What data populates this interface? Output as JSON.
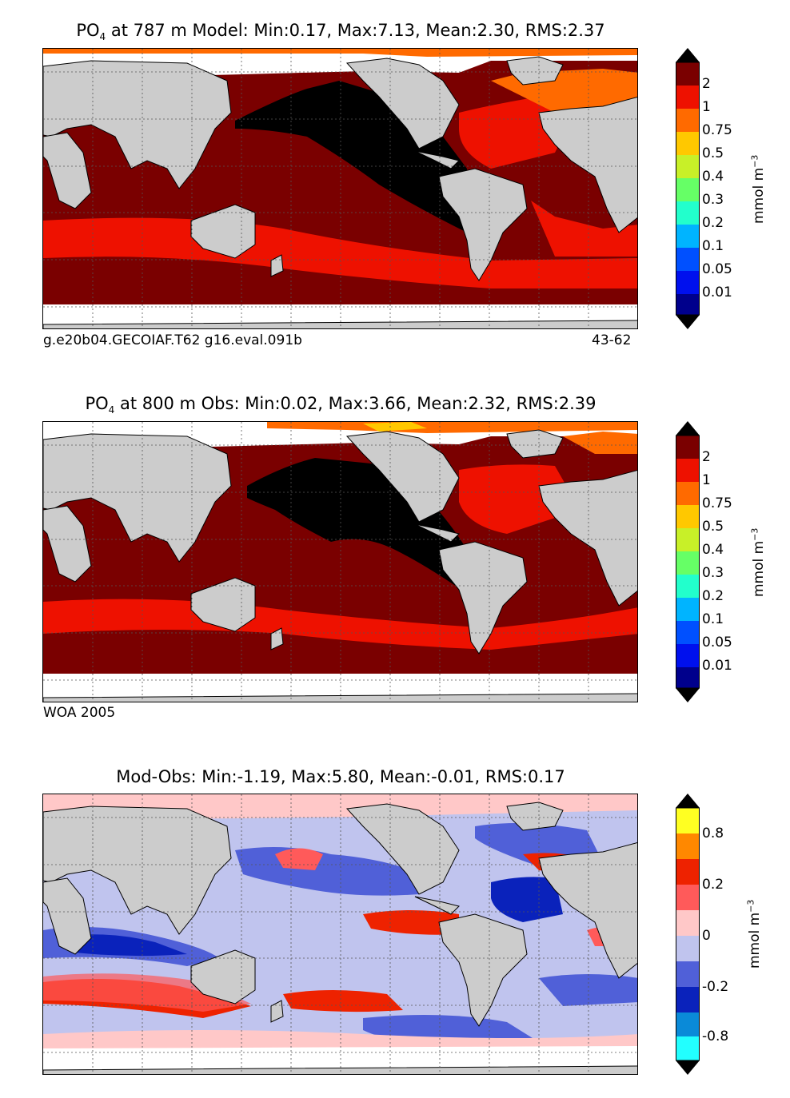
{
  "panels": [
    {
      "title_prefix": "PO",
      "title_sub": "4",
      "title_rest": " at 787 m Model: Min:0.17, Max:7.13, Mean:2.30, RMS:2.37",
      "footer_left": "g.e20b04.GECOIAF.T62 g16.eval.091b",
      "footer_right": "43-62",
      "colorbar": {
        "ticks": [
          "2",
          "1",
          "0.75",
          "0.5",
          "0.4",
          "0.3",
          "0.2",
          "0.1",
          "0.05",
          "0.01"
        ],
        "colors": [
          "#7a0000",
          "#ee1100",
          "#ff6a00",
          "#ffc800",
          "#c8f028",
          "#66ff66",
          "#22ffcc",
          "#00b4ff",
          "#0050ff",
          "#0010ee",
          "#00008c"
        ],
        "over_color": "#000000",
        "under_color": "#000000",
        "unit": "mmol m",
        "unit_sup": "−3"
      }
    },
    {
      "title_prefix": "PO",
      "title_sub": "4",
      "title_rest": " at 800 m Obs: Min:0.02, Max:3.66, Mean:2.32, RMS:2.39",
      "footer_left": "WOA 2005",
      "footer_right": "",
      "colorbar": {
        "ticks": [
          "2",
          "1",
          "0.75",
          "0.5",
          "0.4",
          "0.3",
          "0.2",
          "0.1",
          "0.05",
          "0.01"
        ],
        "colors": [
          "#7a0000",
          "#ee1100",
          "#ff6a00",
          "#ffc800",
          "#c8f028",
          "#66ff66",
          "#22ffcc",
          "#00b4ff",
          "#0050ff",
          "#0010ee",
          "#00008c"
        ],
        "over_color": "#000000",
        "under_color": "#000000",
        "unit": "mmol m",
        "unit_sup": "−3"
      }
    },
    {
      "title_prefix": "",
      "title_sub": "",
      "title_rest": "Mod-Obs: Min:-1.19, Max:5.80, Mean:-0.01, RMS:0.17",
      "footer_left": "",
      "footer_right": "",
      "colorbar": {
        "ticks": [
          "0.8",
          "0.2",
          "0",
          "-0.2",
          "-0.8"
        ],
        "colors": [
          "#ffff22",
          "#ff8800",
          "#ee2200",
          "#ff5a5a",
          "#ffc8c8",
          "#c0c4ee",
          "#5060d8",
          "#0a22bb",
          "#0a8ad8",
          "#22ffff"
        ],
        "over_color": "#000000",
        "under_color": "#000000",
        "unit": "mmol m",
        "unit_sup": "−3"
      }
    }
  ],
  "map_colors": {
    "land": "#cccccc",
    "nodata": "#ffffff",
    "coast": "#000000"
  }
}
